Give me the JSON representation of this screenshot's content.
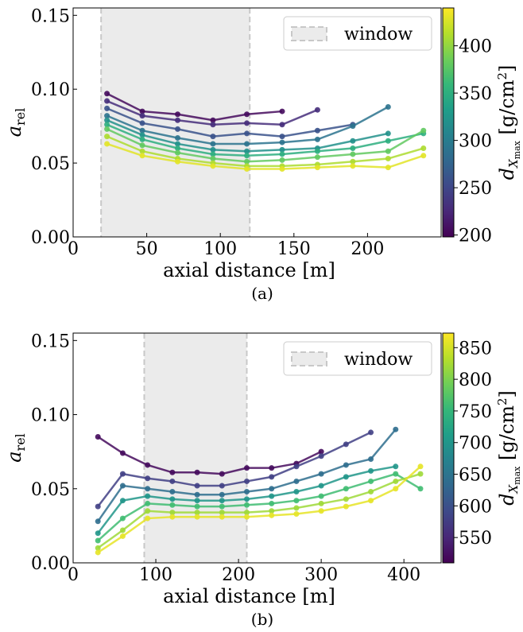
{
  "chart_data": [
    {
      "type": "line",
      "caption": "(a)",
      "xlabel": "axial distance [m]",
      "ylabel": {
        "main": "a",
        "sub": "rel"
      },
      "colorbar_label": {
        "main": "d",
        "sub": "X",
        "subsub": "max",
        "unit": " [g/cm",
        "sup": "2",
        "close": "]"
      },
      "colormap": "viridis",
      "clim": [
        198,
        440
      ],
      "cticks": [
        200,
        250,
        300,
        350,
        400
      ],
      "xlim": [
        0,
        250
      ],
      "xticks": [
        0,
        50,
        100,
        150,
        200
      ],
      "ylim": [
        0,
        0.155
      ],
      "yticks": [
        {
          "value": 0,
          "label": "0.00"
        },
        0.05,
        {
          "value": 0.1,
          "label": "0.10"
        },
        0.15
      ],
      "window": [
        19,
        120
      ],
      "legend": {
        "label": "window",
        "loc": "upper right"
      },
      "x": [
        23,
        47,
        71,
        95,
        118,
        142,
        166,
        190,
        214,
        238
      ],
      "series": [
        {
          "c": 205,
          "values": [
            0.097,
            0.085,
            0.083,
            0.079,
            0.083,
            0.085,
            null,
            null,
            null,
            null
          ]
        },
        {
          "c": 230,
          "values": [
            0.092,
            0.082,
            0.079,
            0.076,
            0.077,
            0.076,
            0.086,
            null,
            null,
            null
          ]
        },
        {
          "c": 260,
          "values": [
            0.087,
            0.077,
            0.073,
            0.068,
            0.07,
            0.068,
            0.072,
            0.076,
            null,
            null
          ]
        },
        {
          "c": 290,
          "values": [
            0.082,
            0.072,
            0.067,
            0.063,
            0.063,
            0.064,
            0.066,
            0.075,
            0.088,
            null
          ]
        },
        {
          "c": 320,
          "values": [
            0.079,
            0.069,
            0.063,
            0.059,
            0.058,
            0.059,
            0.06,
            0.065,
            0.07,
            null
          ]
        },
        {
          "c": 350,
          "values": [
            0.076,
            0.066,
            0.06,
            0.056,
            0.055,
            0.056,
            0.058,
            0.06,
            0.065,
            0.07
          ]
        },
        {
          "c": 380,
          "values": [
            0.073,
            0.062,
            0.057,
            0.053,
            0.051,
            0.052,
            0.054,
            0.056,
            0.058,
            0.072
          ]
        },
        {
          "c": 410,
          "values": [
            0.068,
            0.058,
            0.053,
            0.05,
            0.048,
            0.048,
            0.049,
            0.051,
            0.053,
            0.06
          ]
        },
        {
          "c": 430,
          "values": [
            0.063,
            0.055,
            0.051,
            0.048,
            0.046,
            0.046,
            0.047,
            0.048,
            0.047,
            0.055
          ]
        }
      ]
    },
    {
      "type": "line",
      "caption": "(b)",
      "xlabel": "axial distance [m]",
      "ylabel": {
        "main": "a",
        "sub": "rel"
      },
      "colorbar_label": {
        "main": "d",
        "sub": "X",
        "subsub": "max",
        "unit": " [g/cm",
        "sup": "2",
        "close": "]"
      },
      "colormap": "viridis",
      "clim": [
        510,
        873
      ],
      "cticks": [
        550,
        600,
        650,
        700,
        750,
        800,
        850
      ],
      "xlim": [
        0,
        445
      ],
      "xticks": [
        0,
        100,
        200,
        300,
        400
      ],
      "ylim": [
        0,
        0.155
      ],
      "yticks": [
        {
          "value": 0,
          "label": "0.00"
        },
        0.05,
        {
          "value": 0.1,
          "label": "0.10"
        },
        0.15
      ],
      "window": [
        86,
        210
      ],
      "legend": {
        "label": "window",
        "loc": "upper right"
      },
      "x": [
        30,
        60,
        90,
        120,
        150,
        180,
        210,
        240,
        270,
        300,
        330,
        360,
        390,
        420
      ],
      "series": [
        {
          "c": 520,
          "values": [
            0.085,
            0.074,
            0.066,
            0.061,
            0.061,
            0.06,
            0.064,
            0.064,
            0.067,
            0.075,
            null,
            null,
            null,
            null
          ]
        },
        {
          "c": 580,
          "values": [
            0.038,
            0.06,
            0.057,
            0.055,
            0.052,
            0.052,
            0.055,
            0.058,
            0.065,
            0.072,
            0.08,
            0.088,
            null,
            null
          ]
        },
        {
          "c": 640,
          "values": [
            0.028,
            0.052,
            0.05,
            0.048,
            0.046,
            0.046,
            0.048,
            0.05,
            0.055,
            0.06,
            0.066,
            0.07,
            0.09,
            null
          ]
        },
        {
          "c": 700,
          "values": [
            0.02,
            0.042,
            0.045,
            0.043,
            0.042,
            0.042,
            0.043,
            0.045,
            0.048,
            0.052,
            0.058,
            0.062,
            0.065,
            null
          ]
        },
        {
          "c": 760,
          "values": [
            0.015,
            0.03,
            0.04,
            0.039,
            0.038,
            0.038,
            0.039,
            0.04,
            0.042,
            0.045,
            0.05,
            0.055,
            0.06,
            0.05
          ]
        },
        {
          "c": 820,
          "values": [
            0.01,
            0.022,
            0.035,
            0.034,
            0.034,
            0.034,
            0.034,
            0.035,
            0.037,
            0.04,
            0.043,
            0.048,
            0.055,
            0.06
          ]
        },
        {
          "c": 860,
          "values": [
            0.007,
            0.018,
            0.03,
            0.031,
            0.031,
            0.031,
            0.031,
            0.032,
            0.033,
            0.035,
            0.038,
            0.042,
            0.05,
            0.065
          ]
        }
      ]
    }
  ]
}
